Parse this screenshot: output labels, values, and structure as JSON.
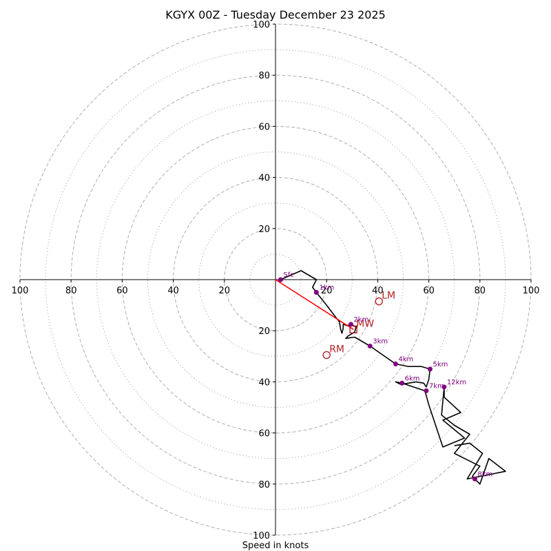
{
  "chart_data": {
    "type": "hodograph",
    "title": "KGYX 00Z - Tuesday December 23 2025",
    "xlabel": "Speed in knots",
    "ylabel": "",
    "units": "knots",
    "range": [
      -100,
      100
    ],
    "ring_major": [
      20,
      40,
      60,
      80,
      100
    ],
    "ring_minor": [
      10,
      30,
      50,
      70,
      90
    ],
    "x_tick_labels": [
      "100",
      "80",
      "60",
      "40",
      "20",
      "20",
      "40",
      "60",
      "80",
      "100"
    ],
    "y_tick_labels": [
      "100",
      "80",
      "60",
      "40",
      "20",
      "20",
      "40",
      "60",
      "80",
      "100"
    ],
    "colors": {
      "trace": "#000000",
      "height_marker": "#800080",
      "vector": "#ff0000",
      "vector_label": "#b22222",
      "grid": "#b4b4b4"
    },
    "trace": [
      [
        2,
        0
      ],
      [
        10,
        3.5
      ],
      [
        16,
        0
      ],
      [
        14.5,
        -3
      ],
      [
        16,
        -5
      ],
      [
        20,
        -10
      ],
      [
        23,
        -14
      ],
      [
        25,
        -16.5
      ],
      [
        25.5,
        -19.5
      ],
      [
        26,
        -21
      ],
      [
        26.5,
        -19
      ],
      [
        26.5,
        -17.5
      ],
      [
        28,
        -18
      ],
      [
        29.5,
        -17.5
      ],
      [
        31.5,
        -18.5
      ],
      [
        31,
        -20.5
      ],
      [
        28.5,
        -22
      ],
      [
        27.5,
        -23
      ],
      [
        31,
        -22.5
      ],
      [
        37,
        -26
      ],
      [
        47,
        -33
      ],
      [
        52,
        -34
      ],
      [
        57,
        -34
      ],
      [
        60.5,
        -35
      ],
      [
        60,
        -39
      ],
      [
        59,
        -42
      ],
      [
        58,
        -40.5
      ],
      [
        55,
        -40
      ],
      [
        52,
        -40.5
      ],
      [
        49,
        -41
      ],
      [
        47,
        -40
      ],
      [
        49.5,
        -40.5
      ],
      [
        58.5,
        -43.5
      ],
      [
        60,
        -49
      ],
      [
        62,
        -55
      ],
      [
        64,
        -61
      ],
      [
        65.5,
        -65.5
      ],
      [
        74,
        -62
      ],
      [
        65.5,
        -55
      ],
      [
        72.5,
        -52
      ],
      [
        66,
        -46
      ],
      [
        66,
        -42
      ],
      [
        65,
        -53
      ],
      [
        70,
        -57
      ],
      [
        76,
        -60.5
      ],
      [
        70,
        -68
      ],
      [
        80,
        -73
      ],
      [
        77,
        -77
      ],
      [
        80,
        -80
      ],
      [
        83.5,
        -70
      ],
      [
        90,
        -75
      ],
      [
        75,
        -78
      ],
      [
        81,
        -68
      ],
      [
        76,
        -64
      ],
      [
        70,
        -65
      ]
    ],
    "height_markers": [
      {
        "label": "Sfc",
        "u": 2,
        "v": 0
      },
      {
        "label": "1km",
        "u": 16,
        "v": -5
      },
      {
        "label": "2km",
        "u": 29.5,
        "v": -17.5
      },
      {
        "label": "3km",
        "u": 37,
        "v": -26
      },
      {
        "label": "4km",
        "u": 47,
        "v": -33
      },
      {
        "label": "5km",
        "u": 60.5,
        "v": -35
      },
      {
        "label": "6km",
        "u": 49.5,
        "v": -40.5
      },
      {
        "label": "7km",
        "u": 59,
        "v": -43.5
      },
      {
        "label": "8km",
        "u": 78,
        "v": -78
      },
      {
        "label": "12km",
        "u": 66,
        "v": -42
      }
    ],
    "storm_vectors": [
      {
        "label": "LM",
        "u": 40.5,
        "v": -8.5,
        "marker": "circle"
      },
      {
        "label": "MW",
        "u": 30.5,
        "v": -19.5,
        "marker": "square"
      },
      {
        "label": "RM",
        "u": 20,
        "v": -29.5,
        "marker": "circle"
      }
    ],
    "shear_vector": {
      "from": [
        0,
        0
      ],
      "to": [
        30.5,
        -19.5
      ]
    }
  }
}
